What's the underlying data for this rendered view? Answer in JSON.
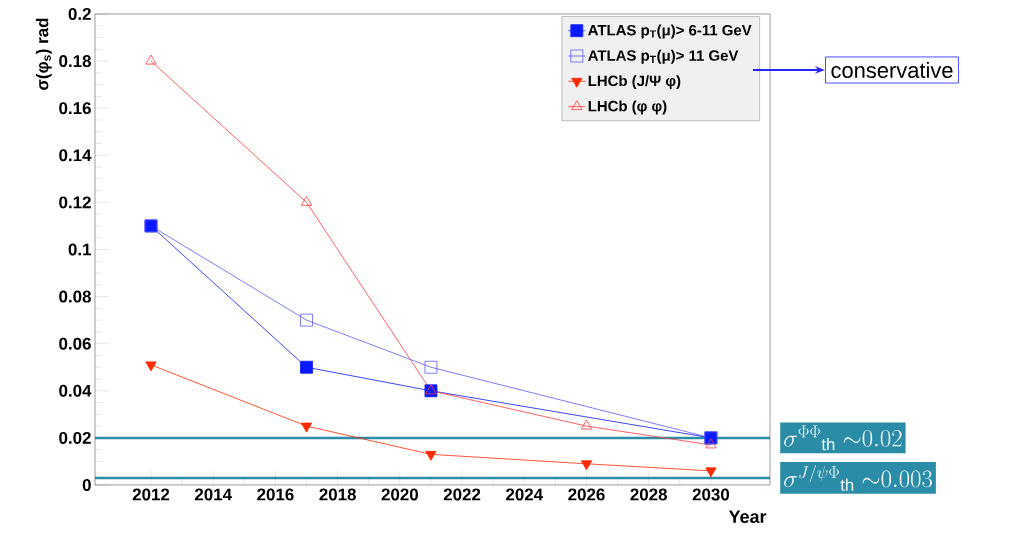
{
  "chart_data": {
    "type": "line",
    "xlabel": "Year",
    "ylabel": "σ(φ$_{s}$) rad",
    "xlim": [
      2010.2,
      2031.9
    ],
    "ylim": [
      0,
      0.2
    ],
    "xticks": [
      2012,
      2014,
      2016,
      2018,
      2020,
      2022,
      2024,
      2026,
      2028,
      2030
    ],
    "yticks": [
      0,
      0.02,
      0.04,
      0.06,
      0.08,
      0.1,
      0.12,
      0.14,
      0.16,
      0.18,
      0.2
    ],
    "legend": "top right",
    "grid": false,
    "series": [
      {
        "name": "ATLAS p$_{T}$(μ)> 6-11 GeV",
        "color": "#0a1aff",
        "marker": "square",
        "x": [
          2012,
          2017,
          2021,
          2030
        ],
        "values": [
          0.11,
          0.05,
          0.04,
          0.02
        ]
      },
      {
        "name": "ATLAS p$_{T}$(μ)> 11 GeV",
        "color": "#5a5aff",
        "marker": "square-open",
        "x": [
          2012,
          2017,
          2021,
          2030
        ],
        "values": [
          0.11,
          0.07,
          0.05,
          0.02
        ]
      },
      {
        "name": "LHCb (J/Ψ φ)",
        "color": "#ff2a00",
        "marker": "triangle-down",
        "x": [
          2012,
          2017,
          2021,
          2026,
          2030
        ],
        "values": [
          0.051,
          0.025,
          0.013,
          0.009,
          0.006
        ]
      },
      {
        "name": "LHCb (φ φ)",
        "color": "#ff3a3a",
        "marker": "triangle-open",
        "x": [
          2012,
          2017,
          2021,
          2026,
          2030
        ],
        "values": [
          0.18,
          0.12,
          0.04,
          0.025,
          0.017
        ]
      }
    ],
    "ref_lines": [
      {
        "axis": "y",
        "value": 0.02,
        "label": "\\sigma^{\\Phi\\Phi}{}_{\\mathrm{th}}\\ {\\sim}0.02",
        "color": "#2a8ca6"
      },
      {
        "axis": "y",
        "value": 0.003,
        "label": "\\sigma^{J/\\psi\\Phi}{}_{\\mathrm{th}}\\ {\\sim}0.003",
        "color": "#2a8ca6"
      }
    ],
    "annotations": [
      "conservative"
    ]
  }
}
